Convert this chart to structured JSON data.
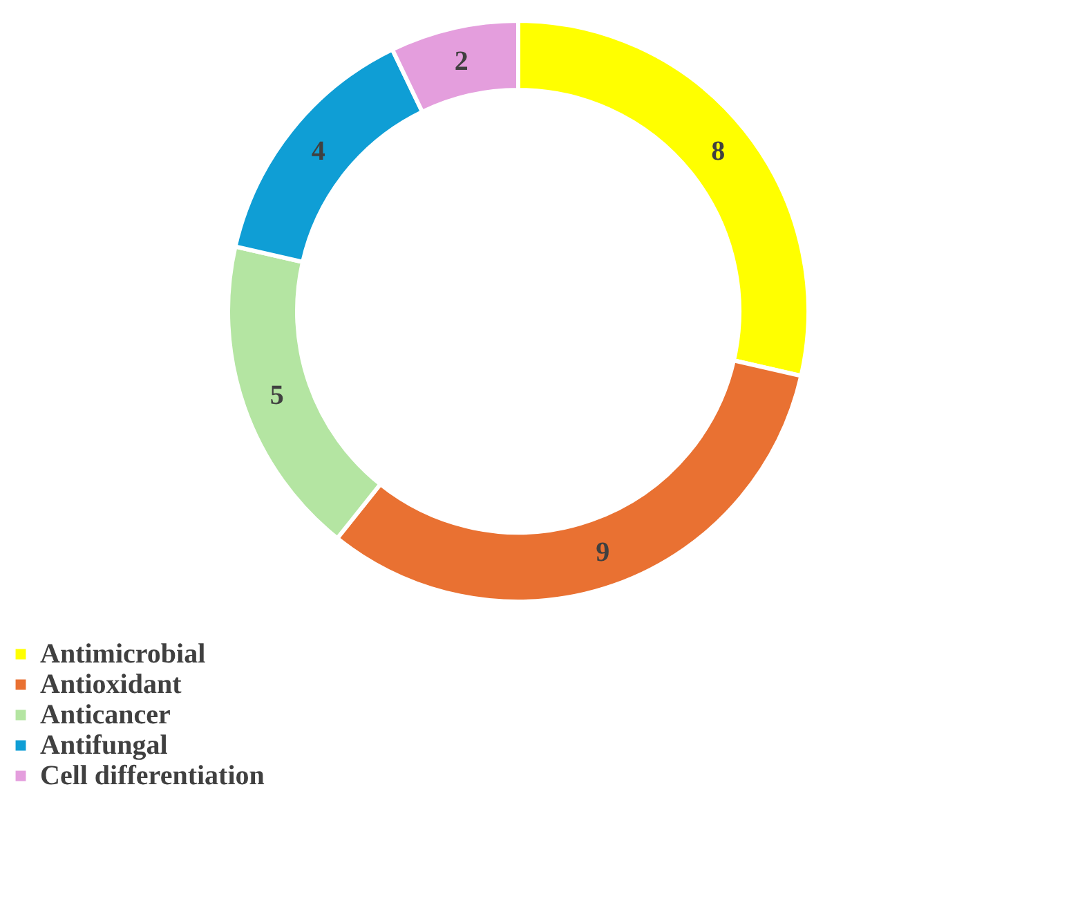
{
  "chart_data": {
    "type": "donut",
    "categories": [
      "Antimicrobial",
      "Antioxidant",
      "Anticancer",
      "Antifungal",
      "Cell differentiation"
    ],
    "values": [
      8,
      9,
      5,
      4,
      2
    ],
    "colors": [
      "#ffff00",
      "#e97132",
      "#b4e5a2",
      "#0f9ed5",
      "#e49edd"
    ],
    "data_labels": true,
    "legend": "bottom"
  }
}
